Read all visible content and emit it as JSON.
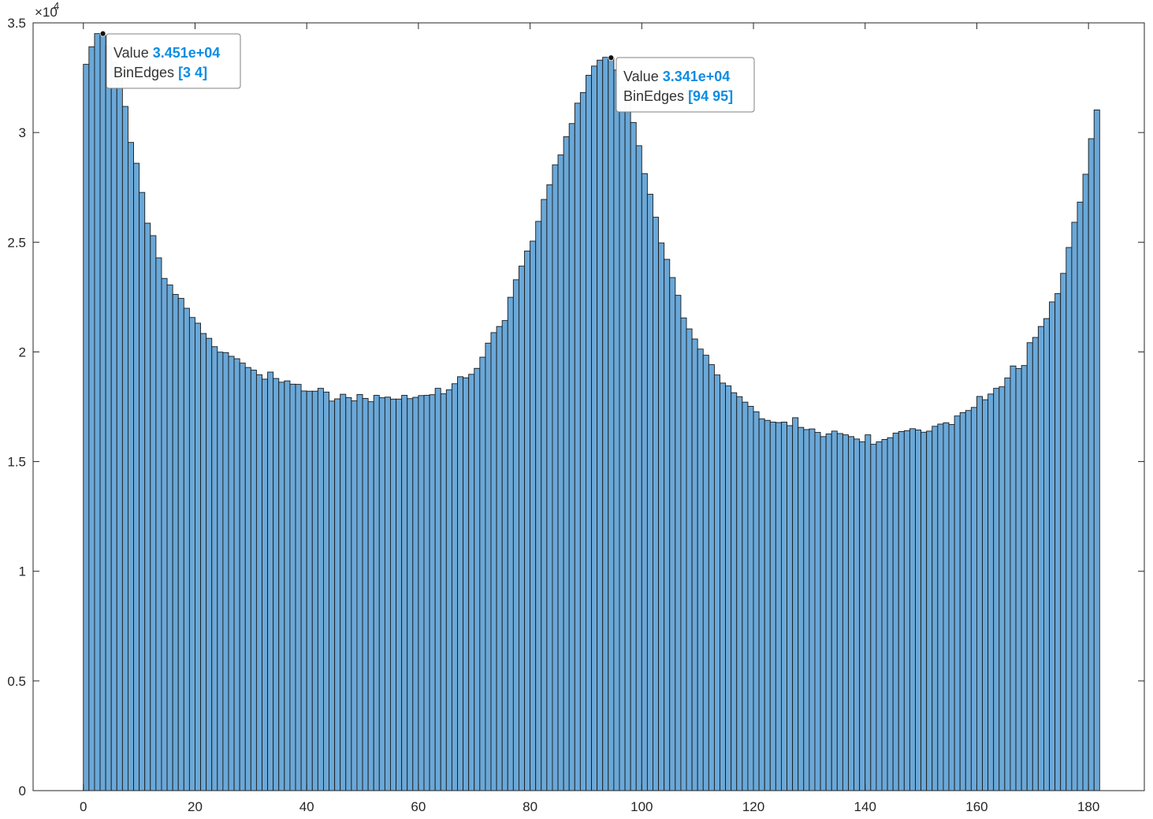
{
  "chart_data": {
    "type": "bar",
    "title": "",
    "xlabel": "",
    "ylabel": "",
    "bin_width": 1,
    "x_start": 0,
    "xlim": [
      -9,
      190
    ],
    "ylim": [
      0,
      35000
    ],
    "x_ticks": [
      "0",
      "20",
      "40",
      "60",
      "80",
      "100",
      "120",
      "140",
      "160",
      "180"
    ],
    "x_tick_values": [
      0,
      20,
      40,
      60,
      80,
      100,
      120,
      140,
      160,
      180
    ],
    "y_ticks": [
      "0",
      "0.5",
      "1",
      "1.5",
      "2",
      "2.5",
      "3",
      "3.5"
    ],
    "y_tick_values": [
      0,
      5000,
      10000,
      15000,
      20000,
      25000,
      30000,
      35000
    ],
    "y_exponent_base": "×10",
    "y_exponent_power": "4",
    "grid": false,
    "bar_color": "#6aa8d8",
    "edge_color": "#1a1a1a",
    "values": [
      33110,
      33910,
      34510,
      34420,
      33950,
      33190,
      32380,
      31190,
      29550,
      28600,
      27270,
      25870,
      25300,
      24290,
      23350,
      23050,
      22620,
      22440,
      21990,
      21570,
      21310,
      20840,
      20620,
      20240,
      19990,
      19970,
      19800,
      19690,
      19490,
      19290,
      19170,
      18960,
      18760,
      19080,
      18790,
      18620,
      18680,
      18530,
      18520,
      18220,
      18210,
      18210,
      18340,
      18170,
      17760,
      17860,
      18070,
      17920,
      17770,
      18060,
      17880,
      17730,
      18020,
      17910,
      17940,
      17850,
      17850,
      18020,
      17870,
      17930,
      18010,
      18020,
      18050,
      18340,
      18090,
      18270,
      18550,
      18870,
      18820,
      18980,
      19250,
      19760,
      20400,
      20880,
      21160,
      21430,
      22490,
      23290,
      23910,
      24600,
      25050,
      25950,
      26950,
      27620,
      28530,
      28980,
      29810,
      30410,
      31340,
      31820,
      32610,
      33030,
      33300,
      33430,
      33410,
      32850,
      32050,
      31480,
      30460,
      29400,
      28130,
      27190,
      26140,
      24970,
      24220,
      23390,
      22580,
      21550,
      21050,
      20590,
      20130,
      19850,
      19420,
      18950,
      18580,
      18450,
      18140,
      17960,
      17710,
      17520,
      17270,
      16950,
      16880,
      16800,
      16780,
      16800,
      16640,
      17000,
      16560,
      16460,
      16490,
      16330,
      16140,
      16260,
      16390,
      16280,
      16220,
      16140,
      16030,
      15900,
      16220,
      15790,
      15900,
      16010,
      16090,
      16300,
      16370,
      16410,
      16500,
      16440,
      16340,
      16390,
      16610,
      16710,
      16770,
      16690,
      17080,
      17230,
      17330,
      17470,
      17970,
      17820,
      18080,
      18340,
      18410,
      18810,
      19360,
      19240,
      19380,
      20420,
      20660,
      21160,
      21520,
      22280,
      22660,
      23580,
      24760,
      25910,
      26830,
      28100,
      29720,
      31030
    ]
  },
  "datatips": [
    {
      "bin_index": 3,
      "value_label": "Value",
      "value_text": "3.451e+04",
      "edges_label": "BinEdges",
      "edges_text": "[3 4]",
      "value": 34510
    },
    {
      "bin_index": 94,
      "value_label": "Value",
      "value_text": "3.341e+04",
      "edges_label": "BinEdges",
      "edges_text": "[94 95]",
      "value": 33410
    }
  ],
  "colors": {
    "axis": "#262626",
    "tip_text": "#333333",
    "tip_value": "#0b8de4",
    "tip_border": "#808080",
    "marker": "#111111"
  }
}
